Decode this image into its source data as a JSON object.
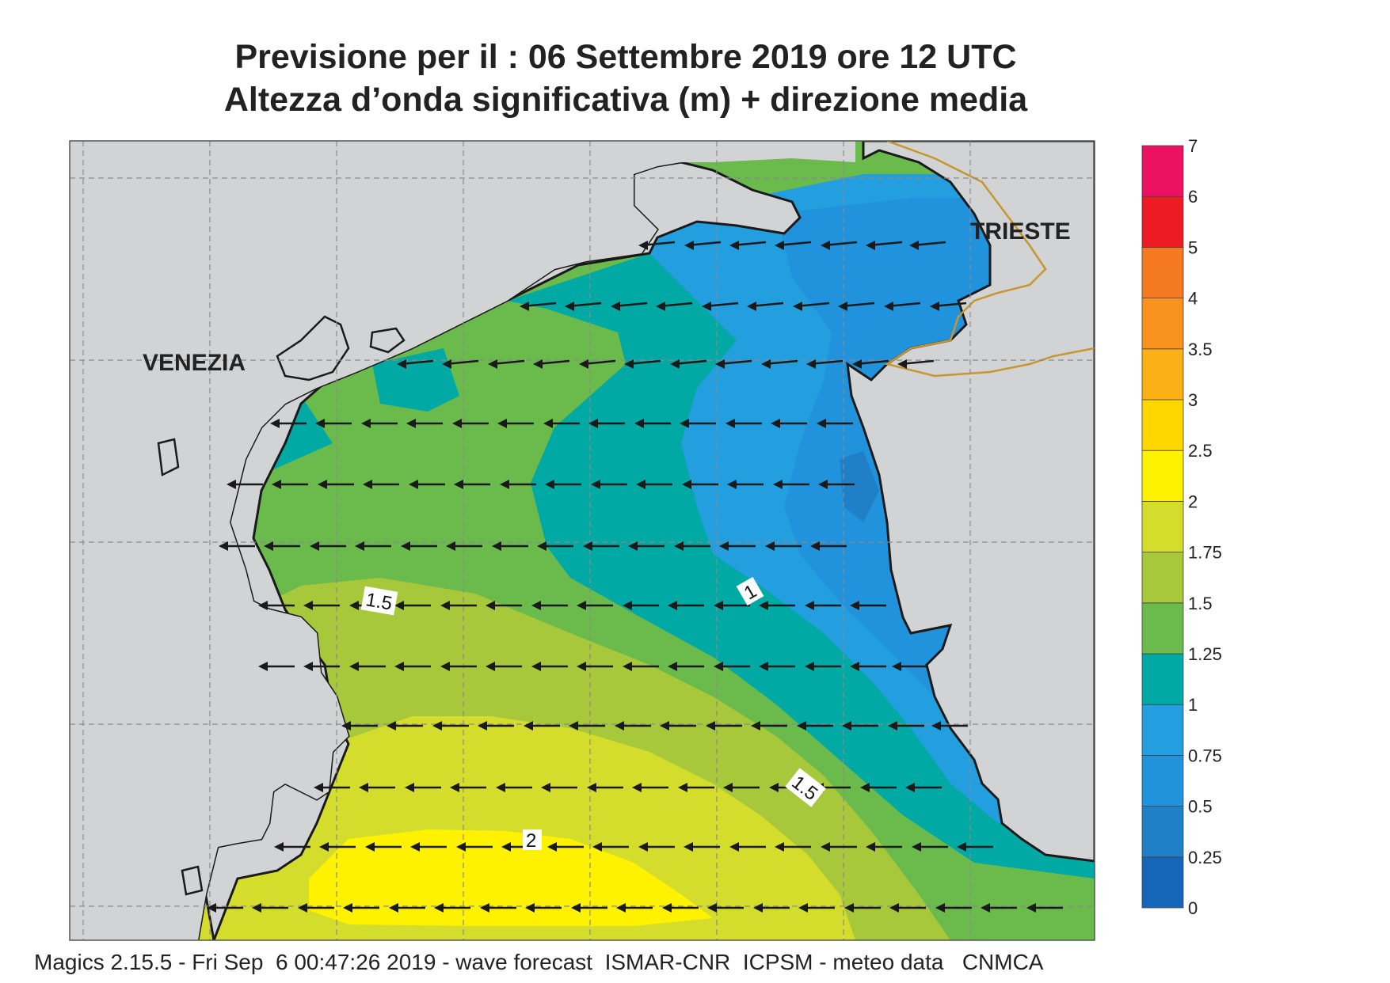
{
  "title": {
    "line1": "Previsione per il  :  06 Settembre 2019   ore 12 UTC",
    "line2": "Altezza d’onda significativa (m) + direzione media"
  },
  "places": {
    "venezia": "VENEZIA",
    "trieste": "TRIESTE"
  },
  "contour_labels": {
    "a": "1.5",
    "b": "1",
    "c": "1.5",
    "d": "2"
  },
  "footer": "Magics 2.15.5 - Fri Sep  6 00:47:26 2019 - wave forecast  ISMAR-CNR  ICPSM - meteo data   CNMCA",
  "legend": {
    "ticks": [
      "0",
      "0.25",
      "0.5",
      "0.75",
      "1",
      "1.25",
      "1.5",
      "1.75",
      "2",
      "2.5",
      "3",
      "3.5",
      "4",
      "5",
      "6",
      "7"
    ],
    "colors": [
      "#1565b8",
      "#1f80c8",
      "#2192dc",
      "#239fe0",
      "#00a9a4",
      "#6bbb4c",
      "#a6c83a",
      "#d5dd2c",
      "#fff200",
      "#ffd700",
      "#fbb015",
      "#f7931e",
      "#f47920",
      "#ed1c24",
      "#ec1162"
    ]
  },
  "colors": {
    "land": "#d2d3d5",
    "frame": "#555555",
    "coast": "#1a1a1a",
    "border": "#c8962e"
  }
}
